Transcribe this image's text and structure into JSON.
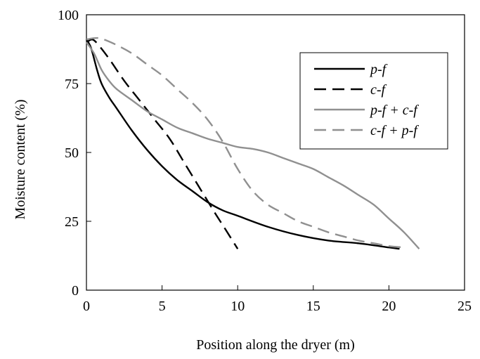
{
  "chart_data": {
    "type": "line",
    "title": "",
    "xlabel": "Position along the dryer (m)",
    "ylabel": "Moisture content (%)",
    "xlim": [
      0,
      25
    ],
    "ylim": [
      0,
      100
    ],
    "x_ticks": [
      0,
      5,
      10,
      15,
      20,
      25
    ],
    "y_ticks": [
      0,
      25,
      50,
      75,
      100
    ],
    "x_tick_labels": [
      "0",
      "5",
      "10",
      "15",
      "20",
      "25"
    ],
    "y_tick_labels": [
      "0",
      "25",
      "50",
      "75",
      "100"
    ],
    "grid": false,
    "legend_position": "top-right",
    "series": [
      {
        "name": "p-f",
        "color": "#000000",
        "dash": "solid",
        "points": [
          [
            0,
            91
          ],
          [
            0.3,
            88
          ],
          [
            0.7,
            80
          ],
          [
            1,
            75
          ],
          [
            1.5,
            70
          ],
          [
            2,
            66
          ],
          [
            3,
            58
          ],
          [
            4,
            51
          ],
          [
            5,
            45
          ],
          [
            6,
            40
          ],
          [
            7,
            36
          ],
          [
            8,
            32
          ],
          [
            9,
            29
          ],
          [
            10,
            27
          ],
          [
            12,
            23
          ],
          [
            14,
            20
          ],
          [
            16,
            18
          ],
          [
            18,
            17
          ],
          [
            20,
            15.5
          ],
          [
            20.7,
            15
          ]
        ]
      },
      {
        "name": "c-f",
        "color": "#000000",
        "dash": "dashed",
        "points": [
          [
            0,
            90
          ],
          [
            0.4,
            91
          ],
          [
            0.8,
            89
          ],
          [
            1.5,
            84
          ],
          [
            2.5,
            76
          ],
          [
            3.5,
            69
          ],
          [
            4.5,
            62
          ],
          [
            5.5,
            55
          ],
          [
            6.5,
            46
          ],
          [
            7.5,
            37
          ],
          [
            8.5,
            28
          ],
          [
            9.2,
            22
          ],
          [
            10,
            15
          ]
        ]
      },
      {
        "name": "p-f + c-f",
        "color": "#909090",
        "dash": "solid",
        "points": [
          [
            0,
            90
          ],
          [
            0.5,
            86
          ],
          [
            1,
            80
          ],
          [
            1.5,
            76
          ],
          [
            2,
            73
          ],
          [
            3,
            69
          ],
          [
            4,
            65
          ],
          [
            5,
            62
          ],
          [
            6,
            59
          ],
          [
            7,
            57
          ],
          [
            8,
            55
          ],
          [
            9,
            53.5
          ],
          [
            10,
            52
          ],
          [
            11,
            51.3
          ],
          [
            12,
            50
          ],
          [
            13,
            48
          ],
          [
            14,
            46
          ],
          [
            15,
            44
          ],
          [
            16,
            41
          ],
          [
            17,
            38
          ],
          [
            18,
            34.5
          ],
          [
            19,
            31
          ],
          [
            20,
            26
          ],
          [
            21,
            21
          ],
          [
            22,
            15
          ]
        ]
      },
      {
        "name": "c-f + p-f",
        "color": "#909090",
        "dash": "dashed",
        "points": [
          [
            0,
            91
          ],
          [
            0.5,
            91.5
          ],
          [
            1,
            91.3
          ],
          [
            2,
            89
          ],
          [
            3,
            86
          ],
          [
            4,
            82
          ],
          [
            5,
            78
          ],
          [
            6,
            73
          ],
          [
            7,
            68
          ],
          [
            8,
            62
          ],
          [
            9,
            54
          ],
          [
            10,
            44
          ],
          [
            11,
            36
          ],
          [
            12,
            31
          ],
          [
            13,
            28
          ],
          [
            14,
            25
          ],
          [
            15,
            23
          ],
          [
            16,
            21
          ],
          [
            17,
            19.5
          ],
          [
            18,
            18
          ],
          [
            19,
            17
          ],
          [
            20,
            16
          ],
          [
            21,
            15.5
          ]
        ]
      }
    ]
  }
}
